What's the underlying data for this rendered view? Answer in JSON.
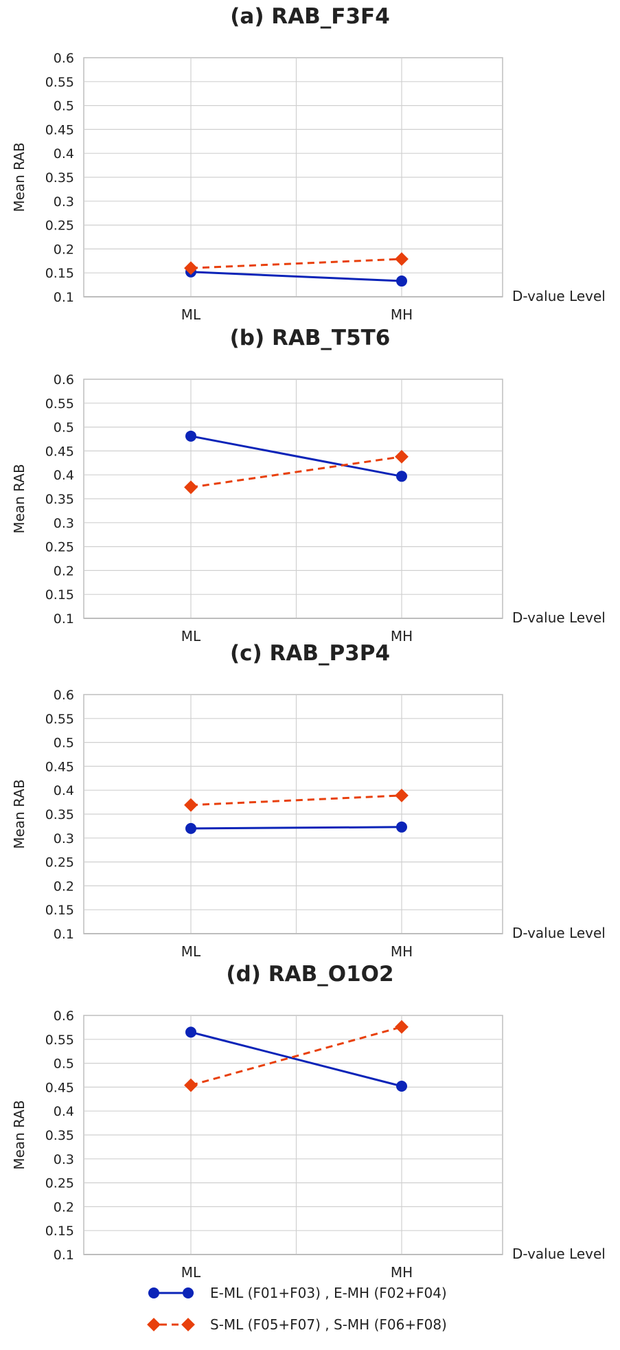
{
  "legend": {
    "series_e_label": "E-ML (F01+F03) , E-MH (F02+F04)",
    "series_s_label": "S-ML (F05+F07) , S-MH (F06+F08)"
  },
  "colors": {
    "series_e": "#0b24b8",
    "series_s": "#e8400c",
    "grid": "#d0d0d0",
    "axis": "#bdbdbd"
  },
  "chart_data": [
    {
      "type": "line",
      "title": "(a) RAB_F3F4",
      "xlabel": "D-value Level",
      "ylabel": "Mean RAB",
      "categories": [
        "ML",
        "MH"
      ],
      "ylim": [
        0.1,
        0.6
      ],
      "yticks": [
        "0.1",
        "0.15",
        "0.2",
        "0.25",
        "0.3",
        "0.35",
        "0.4",
        "0.45",
        "0.5",
        "0.55",
        "0.6"
      ],
      "series": [
        {
          "name": "E-ML (F01+F03) , E-MH (F02+F04)",
          "values": [
            0.152,
            0.133
          ]
        },
        {
          "name": "S-ML (F05+F07) , S-MH (F06+F08)",
          "values": [
            0.16,
            0.179
          ]
        }
      ]
    },
    {
      "type": "line",
      "title": "(b) RAB_T5T6",
      "xlabel": "D-value Level",
      "ylabel": "Mean RAB",
      "categories": [
        "ML",
        "MH"
      ],
      "ylim": [
        0.1,
        0.6
      ],
      "yticks": [
        "0.1",
        "0.15",
        "0.2",
        "0.25",
        "0.3",
        "0.35",
        "0.4",
        "0.45",
        "0.5",
        "0.55",
        "0.6"
      ],
      "series": [
        {
          "name": "E-ML (F01+F03) , E-MH (F02+F04)",
          "values": [
            0.481,
            0.397
          ]
        },
        {
          "name": "S-ML (F05+F07) , S-MH (F06+F08)",
          "values": [
            0.374,
            0.438
          ]
        }
      ]
    },
    {
      "type": "line",
      "title": "(c) RAB_P3P4",
      "xlabel": "D-value Level",
      "ylabel": "Mean RAB",
      "categories": [
        "ML",
        "MH"
      ],
      "ylim": [
        0.1,
        0.6
      ],
      "yticks": [
        "0.1",
        "0.15",
        "0.2",
        "0.25",
        "0.3",
        "0.35",
        "0.4",
        "0.45",
        "0.5",
        "0.55",
        "0.6"
      ],
      "series": [
        {
          "name": "E-ML (F01+F03) , E-MH (F02+F04)",
          "values": [
            0.32,
            0.323
          ]
        },
        {
          "name": "S-ML (F05+F07) , S-MH (F06+F08)",
          "values": [
            0.369,
            0.389
          ]
        }
      ]
    },
    {
      "type": "line",
      "title": "(d) RAB_O1O2",
      "xlabel": "D-value Level",
      "ylabel": "Mean RAB",
      "categories": [
        "ML",
        "MH"
      ],
      "ylim": [
        0.1,
        0.6
      ],
      "yticks": [
        "0.1",
        "0.15",
        "0.2",
        "0.25",
        "0.3",
        "0.35",
        "0.4",
        "0.45",
        "0.5",
        "0.55",
        "0.6"
      ],
      "series": [
        {
          "name": "E-ML (F01+F03) , E-MH (F02+F04)",
          "values": [
            0.565,
            0.452
          ]
        },
        {
          "name": "S-ML (F05+F07) , S-MH (F06+F08)",
          "values": [
            0.454,
            0.576
          ]
        }
      ]
    }
  ]
}
